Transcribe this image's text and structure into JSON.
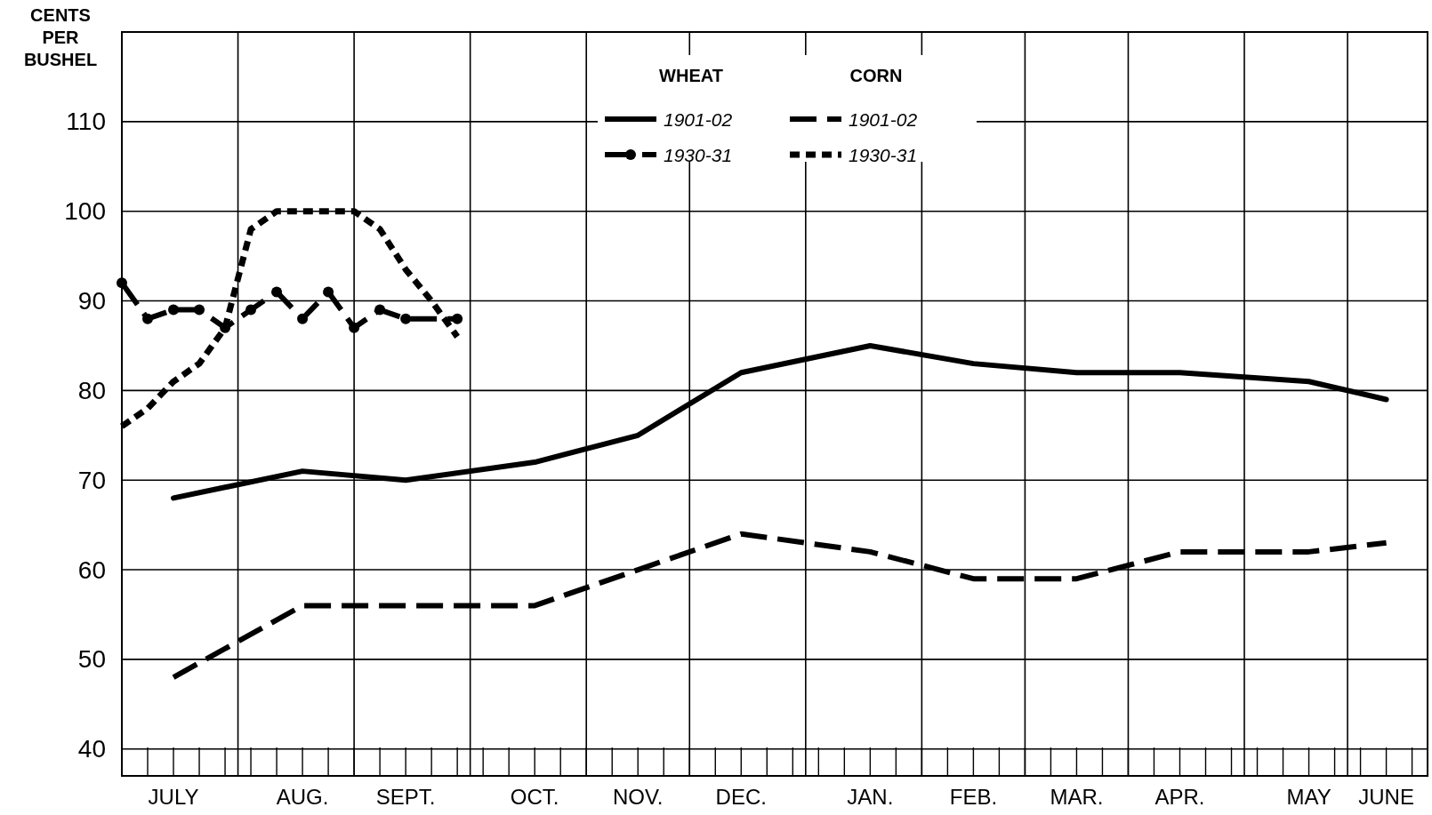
{
  "chart_data": {
    "type": "line",
    "ylabel": "CENTS PER BUSHEL",
    "annotations": [
      "WHEAT",
      "CORN"
    ],
    "categories": [
      null,
      null,
      "JULY",
      null,
      null,
      null,
      null,
      "AUG.",
      null,
      null,
      null,
      "SEPT.",
      null,
      null,
      null,
      null,
      "OCT.",
      null,
      null,
      null,
      "NOV.",
      null,
      null,
      null,
      "DEC.",
      null,
      null,
      null,
      null,
      "JAN.",
      null,
      null,
      null,
      "FEB.",
      null,
      null,
      null,
      "MAR.",
      null,
      null,
      null,
      "APR.",
      null,
      null,
      null,
      null,
      "MAY",
      null,
      null,
      "JUNE",
      null
    ],
    "ylim": [
      37,
      120
    ],
    "yticks": [
      40,
      50,
      60,
      70,
      80,
      90,
      100,
      110
    ],
    "grid": true,
    "legend": "top",
    "series": [
      {
        "name": "1901-02",
        "color": "#000000",
        "line_style": "solid",
        "marker": "none",
        "values": [
          null,
          null,
          68,
          null,
          null,
          null,
          null,
          71,
          null,
          null,
          null,
          70,
          null,
          null,
          null,
          null,
          72,
          null,
          null,
          null,
          75,
          null,
          null,
          null,
          82,
          null,
          null,
          null,
          null,
          85,
          null,
          null,
          null,
          83,
          null,
          null,
          null,
          82,
          null,
          null,
          null,
          82,
          null,
          null,
          null,
          null,
          81,
          null,
          null,
          79,
          null
        ]
      },
      {
        "name": "1930-31",
        "color": "#000000",
        "line_style": "dashed",
        "marker": "circle",
        "values": [
          92,
          88,
          89,
          89,
          87,
          89,
          91,
          88,
          91,
          87,
          89,
          88,
          null,
          88,
          null,
          null,
          null,
          null,
          null,
          null,
          null,
          null,
          null,
          null,
          null,
          null,
          null,
          null,
          null,
          null,
          null,
          null,
          null,
          null,
          null,
          null,
          null,
          null,
          null,
          null,
          null,
          null,
          null,
          null,
          null,
          null,
          null,
          null,
          null,
          null,
          null
        ]
      },
      {
        "name": "1901-02",
        "color": "#000000",
        "line_style": "dashed",
        "marker": "none",
        "values": [
          null,
          null,
          48,
          null,
          null,
          null,
          null,
          56,
          null,
          null,
          null,
          56,
          null,
          null,
          null,
          null,
          56,
          null,
          null,
          null,
          60,
          null,
          null,
          null,
          64,
          null,
          null,
          null,
          null,
          62,
          null,
          null,
          null,
          59,
          null,
          null,
          null,
          59,
          null,
          null,
          null,
          62,
          null,
          null,
          null,
          null,
          62,
          null,
          null,
          63,
          null
        ]
      },
      {
        "name": "1930-31",
        "color": "#000000",
        "line_style": "dotted",
        "marker": "none",
        "values": [
          76,
          78,
          81,
          83,
          87,
          98,
          100,
          100,
          100,
          100,
          98,
          93.5,
          90,
          86,
          null,
          null,
          null,
          null,
          null,
          null,
          null,
          null,
          null,
          null,
          null,
          null,
          null,
          null,
          null,
          null,
          null,
          null,
          null,
          null,
          null,
          null,
          null,
          null,
          null,
          null,
          null,
          null,
          null,
          null,
          null,
          null,
          null,
          null,
          null,
          null,
          null
        ]
      }
    ]
  }
}
